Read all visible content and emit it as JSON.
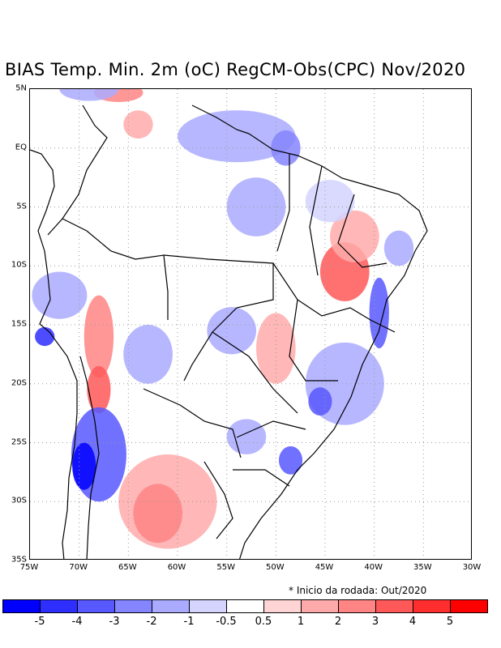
{
  "title": "BIAS Temp. Min. 2m (oC) RegCM-Obs(CPC) Nov/2020",
  "lat_labels": [
    "5N",
    "EQ",
    "5S",
    "10S",
    "15S",
    "20S",
    "25S",
    "30S",
    "35S"
  ],
  "lon_labels": [
    "75W",
    "70W",
    "65W",
    "60W",
    "55W",
    "50W",
    "45W",
    "40W",
    "35W",
    "30W"
  ],
  "note": "* Inicio da rodada: Out/2020",
  "colorbar": {
    "colors": [
      "#0000ff",
      "#2e2eff",
      "#5858ff",
      "#8585ff",
      "#aaaaff",
      "#d4d4ff",
      "#ffffff",
      "#ffd4d4",
      "#ffaaaa",
      "#ff8585",
      "#ff5858",
      "#ff2e2e",
      "#ff0000"
    ],
    "labels": [
      "-5",
      "-4",
      "-3",
      "-2",
      "-1",
      "-0.5",
      "0.5",
      "1",
      "2",
      "3",
      "4",
      "5"
    ]
  },
  "map_data": {
    "lon_range": [
      -75,
      -30
    ],
    "lat_range": [
      -35,
      5
    ],
    "grid_lons": [
      -70,
      -65,
      -60,
      -55,
      -50,
      -45,
      -40,
      -35
    ],
    "grid_lats": [
      0,
      -5,
      -10,
      -15,
      -20,
      -25,
      -30
    ],
    "blobs": [
      {
        "lon": -43,
        "lat": -10.5,
        "rx": 2.5,
        "ry": 2.5,
        "color": "#ff5858"
      },
      {
        "lon": -42,
        "lat": -7.5,
        "rx": 2.5,
        "ry": 2.2,
        "color": "#ffaaaa"
      },
      {
        "lon": -68,
        "lat": -16,
        "rx": 1.5,
        "ry": 3.5,
        "color": "#ff8585"
      },
      {
        "lon": -68,
        "lat": -20.5,
        "rx": 1.2,
        "ry": 2,
        "color": "#ff5858"
      },
      {
        "lon": -61,
        "lat": -30,
        "rx": 5,
        "ry": 4,
        "color": "#ffaaaa"
      },
      {
        "lon": -62,
        "lat": -31,
        "rx": 2.5,
        "ry": 2.5,
        "color": "#ff8585"
      },
      {
        "lon": -50,
        "lat": -17,
        "rx": 2,
        "ry": 3,
        "color": "#ffaaaa"
      },
      {
        "lon": -64,
        "lat": 2,
        "rx": 1.5,
        "ry": 1.2,
        "color": "#ffaaaa"
      },
      {
        "lon": -66,
        "lat": 4.7,
        "rx": 2.5,
        "ry": 0.8,
        "color": "#ff8585"
      },
      {
        "lon": -68,
        "lat": -26,
        "rx": 2.8,
        "ry": 4,
        "color": "#5858ff"
      },
      {
        "lon": -69.5,
        "lat": -27,
        "rx": 1.2,
        "ry": 2,
        "color": "#0000ff"
      },
      {
        "lon": -54,
        "lat": 1,
        "rx": 6,
        "ry": 2.2,
        "color": "#aaaaff"
      },
      {
        "lon": -49,
        "lat": 0,
        "rx": 1.5,
        "ry": 1.5,
        "color": "#8585ff"
      },
      {
        "lon": -52,
        "lat": -5,
        "rx": 3,
        "ry": 2.5,
        "color": "#aaaaff"
      },
      {
        "lon": -43,
        "lat": -20,
        "rx": 4,
        "ry": 3.5,
        "color": "#aaaaff"
      },
      {
        "lon": -45.5,
        "lat": -21.5,
        "rx": 1.2,
        "ry": 1.2,
        "color": "#5858ff"
      },
      {
        "lon": -39.5,
        "lat": -14,
        "rx": 1,
        "ry": 3,
        "color": "#5858ff"
      },
      {
        "lon": -72,
        "lat": -12.5,
        "rx": 2.8,
        "ry": 2,
        "color": "#aaaaff"
      },
      {
        "lon": -73.5,
        "lat": -16,
        "rx": 1,
        "ry": 0.8,
        "color": "#2e2eff"
      },
      {
        "lon": -63,
        "lat": -17.5,
        "rx": 2.5,
        "ry": 2.5,
        "color": "#aaaaff"
      },
      {
        "lon": -54.5,
        "lat": -15.5,
        "rx": 2.5,
        "ry": 2,
        "color": "#aaaaff"
      },
      {
        "lon": -69,
        "lat": 5,
        "rx": 3,
        "ry": 1,
        "color": "#aaaaff"
      },
      {
        "lon": -48.5,
        "lat": -26.5,
        "rx": 1.2,
        "ry": 1.2,
        "color": "#5858ff"
      },
      {
        "lon": -53,
        "lat": -24.5,
        "rx": 2,
        "ry": 1.5,
        "color": "#aaaaff"
      },
      {
        "lon": -44.5,
        "lat": -4.5,
        "rx": 2.5,
        "ry": 1.8,
        "color": "#d4d4ff"
      },
      {
        "lon": -37.5,
        "lat": -8.5,
        "rx": 1.5,
        "ry": 1.5,
        "color": "#aaaaff"
      }
    ]
  }
}
